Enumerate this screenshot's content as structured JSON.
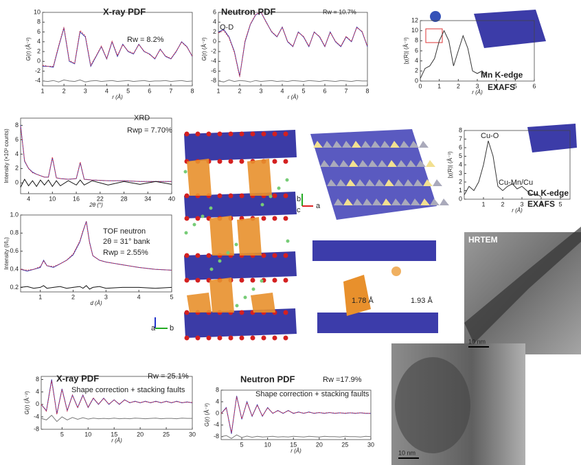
{
  "chart_data": [
    {
      "type": "line",
      "title": "X-ray PDF",
      "annotations": [
        "Rw = 8.2%"
      ],
      "xlabel": "r (Å)",
      "ylabel": "G(r) (Å⁻²)",
      "x": [
        1,
        1.25,
        1.5,
        1.75,
        2,
        2.25,
        2.5,
        2.75,
        3,
        3.25,
        3.5,
        3.75,
        4,
        4.25,
        4.5,
        4.75,
        5,
        5.25,
        5.5,
        5.75,
        6,
        6.25,
        6.5,
        6.75,
        7,
        7.25,
        7.5,
        7.75,
        8
      ],
      "series": [
        {
          "color": "#3a3aa8",
          "values": [
            -1,
            -1,
            -1.2,
            3,
            6.8,
            0,
            -0.5,
            6,
            5,
            -1,
            1,
            3,
            0.5,
            4,
            1,
            3.5,
            2,
            1.5,
            3.5,
            2,
            1.5,
            0.5,
            2.5,
            1,
            0.5,
            2,
            4,
            3,
            1
          ]
        },
        {
          "color": "#d0304a",
          "style": "dashed",
          "values": [
            -0.8,
            -1,
            -1,
            3.2,
            7,
            0.2,
            -0.4,
            6.3,
            5.2,
            -0.8,
            1.1,
            3.1,
            0.6,
            4.1,
            1.2,
            3.4,
            2.1,
            1.6,
            3.4,
            2.1,
            1.4,
            0.6,
            2.4,
            1.1,
            0.6,
            2.1,
            3.9,
            2.9,
            1.1
          ]
        },
        {
          "color": "#777777",
          "values": [
            -4,
            -4.1,
            -3.9,
            -4.2,
            -3.8,
            -4,
            -4.1,
            -3.8,
            -4.2,
            -4,
            -3.9,
            -4.1,
            -4,
            -3.9,
            -4.1,
            -4,
            -3.9,
            -4.1,
            -4,
            -3.9,
            -4.1,
            -4,
            -4,
            -3.9,
            -4.1,
            -4,
            -3.9,
            -4.1,
            -4
          ]
        }
      ],
      "xlim": [
        1,
        8
      ],
      "ylim": [
        -5,
        10
      ],
      "xticks": [
        1,
        2,
        3,
        4,
        5,
        6,
        7,
        8
      ],
      "yticks": [
        -4,
        -2,
        0,
        2,
        4,
        6,
        8,
        10
      ]
    },
    {
      "type": "line",
      "title": "Neutron PDF",
      "annotations": [
        "Rw = 10.7%",
        "O-D"
      ],
      "xlabel": "r (Å)",
      "ylabel": "G(r) (Å⁻²)",
      "x": [
        1,
        1.25,
        1.5,
        1.75,
        2,
        2.25,
        2.5,
        2.75,
        3,
        3.25,
        3.5,
        3.75,
        4,
        4.25,
        4.5,
        4.75,
        5,
        5.25,
        5.5,
        5.75,
        6,
        6.25,
        6.5,
        6.75,
        7,
        7.25,
        7.5,
        7.75,
        8
      ],
      "series": [
        {
          "color": "#3a3aa8",
          "values": [
            2,
            2.5,
            1,
            -2,
            -7,
            0,
            3.5,
            5.5,
            6,
            4,
            2,
            1,
            3,
            0,
            -1,
            2,
            1,
            -1,
            2,
            1,
            -1,
            2,
            0,
            -1,
            1,
            0,
            3,
            2,
            -1
          ]
        },
        {
          "color": "#d0304a",
          "style": "dashed",
          "values": [
            1.8,
            2.3,
            0.8,
            -2.2,
            -7.2,
            0.2,
            3.6,
            5.6,
            6.1,
            3.9,
            2.1,
            1.1,
            2.9,
            0.1,
            -0.9,
            1.9,
            1.1,
            -0.9,
            1.9,
            1.1,
            -0.9,
            1.9,
            0.1,
            -0.9,
            1.1,
            0.1,
            2.9,
            2.1,
            -0.9
          ]
        },
        {
          "color": "#777777",
          "values": [
            -8,
            -8.2,
            -7.8,
            -8.1,
            -7.9,
            -8,
            -8.2,
            -7.9,
            -8.1,
            -8,
            -7.9,
            -8.1,
            -8,
            -8.1,
            -7.9,
            -8,
            -8.1,
            -7.9,
            -8,
            -8.1,
            -7.9,
            -8,
            -8.1,
            -7.9,
            -8,
            -8.1,
            -7.9,
            -8,
            -8
          ]
        }
      ],
      "xlim": [
        1,
        8
      ],
      "ylim": [
        -9,
        6
      ],
      "xticks": [
        1,
        2,
        3,
        4,
        5,
        6,
        7,
        8
      ],
      "yticks": [
        -8,
        -6,
        -4,
        -2,
        0,
        2,
        4,
        6
      ]
    },
    {
      "type": "line",
      "annotations": [
        "Mn K-edge",
        "EXAFS"
      ],
      "xlabel": "r (Å)",
      "ylabel": "|χ(R)| (Å⁻³)",
      "x": [
        0,
        0.25,
        0.5,
        0.75,
        1,
        1.25,
        1.5,
        1.75,
        2,
        2.25,
        2.5,
        2.75,
        3,
        3.25,
        3.5
      ],
      "series": [
        {
          "color": "#333333",
          "values": [
            0.5,
            2.5,
            3,
            4.5,
            8,
            10,
            8,
            3,
            6,
            9,
            6.5,
            2,
            1.5,
            2,
            1
          ]
        }
      ],
      "xlim": [
        0,
        6
      ],
      "ylim": [
        0,
        12
      ],
      "xticks": [
        0,
        1,
        2,
        3,
        4,
        5,
        6
      ],
      "yticks": [
        0,
        2,
        4,
        6,
        8,
        10,
        12
      ]
    },
    {
      "type": "line",
      "annotations": [
        "XRD",
        "Rwp = 7.70%"
      ],
      "xlabel": "2θ (°)",
      "ylabel": "Intensity (×10³ counts)",
      "x": [
        2,
        3,
        4,
        5,
        6,
        7,
        8,
        9,
        10,
        11,
        12,
        14,
        16,
        17,
        18,
        20,
        24,
        28,
        32,
        36,
        40
      ],
      "series": [
        {
          "color": "#3a3aa8",
          "values": [
            8,
            3,
            2,
            1.5,
            1.2,
            1,
            0.8,
            0.8,
            3.5,
            0.7,
            0.6,
            0.5,
            0.6,
            2.8,
            0.5,
            0.4,
            0.3,
            0.3,
            0.2,
            0.2,
            0.2
          ]
        },
        {
          "color": "#d0304a",
          "style": "dashed",
          "values": [
            7.8,
            3.1,
            2,
            1.4,
            1.2,
            1,
            0.8,
            0.8,
            3.6,
            0.7,
            0.6,
            0.5,
            0.6,
            2.9,
            0.5,
            0.4,
            0.3,
            0.3,
            0.2,
            0.2,
            0.2
          ]
        },
        {
          "color": "#111111",
          "values": [
            -0.6,
            0.5,
            -0.4,
            0.3,
            -0.5,
            0.4,
            -0.3,
            0.4,
            -0.5,
            0.3,
            -0.4,
            0.3,
            -0.3,
            0.4,
            -0.3,
            0.3,
            -0.3,
            0.2,
            -0.2,
            0.2,
            -0.2
          ]
        }
      ],
      "xlim": [
        2,
        40
      ],
      "ylim": [
        -1.5,
        9
      ],
      "xticks": [
        4,
        10,
        16,
        22,
        28,
        34,
        40
      ],
      "yticks": [
        0,
        2,
        4,
        6,
        8
      ]
    },
    {
      "type": "line",
      "annotations": [
        "TOF neutron",
        "2θ = 31° bank",
        "Rwp = 2.55%"
      ],
      "xlabel": "d (Å)",
      "ylabel": "Intensity (I/I₀)",
      "x": [
        0.4,
        0.6,
        0.8,
        1,
        1.1,
        1.2,
        1.4,
        1.6,
        1.8,
        2,
        2.2,
        2.3,
        2.4,
        2.5,
        2.6,
        2.8,
        3,
        3.5,
        4,
        4.5,
        5
      ],
      "series": [
        {
          "color": "#3a3aa8",
          "values": [
            0.4,
            0.38,
            0.4,
            0.42,
            0.5,
            0.44,
            0.42,
            0.46,
            0.5,
            0.56,
            0.7,
            0.82,
            0.93,
            0.7,
            0.55,
            0.5,
            0.48,
            0.45,
            0.42,
            0.4,
            0.39
          ]
        },
        {
          "color": "#d0304a",
          "style": "dashed",
          "values": [
            0.4,
            0.39,
            0.4,
            0.43,
            0.49,
            0.44,
            0.43,
            0.46,
            0.5,
            0.57,
            0.71,
            0.83,
            0.92,
            0.69,
            0.55,
            0.5,
            0.48,
            0.45,
            0.42,
            0.4,
            0.39
          ]
        },
        {
          "color": "#111111",
          "values": [
            0.2,
            0.21,
            0.19,
            0.2,
            0.22,
            0.19,
            0.2,
            0.21,
            0.19,
            0.2,
            0.21,
            0.19,
            0.22,
            0.18,
            0.2,
            0.21,
            0.19,
            0.2,
            0.2,
            0.19,
            0.2
          ]
        }
      ],
      "xlim": [
        0.4,
        5
      ],
      "ylim": [
        0.15,
        1.0
      ],
      "xticks": [
        1,
        2,
        3,
        4,
        5
      ],
      "yticks": [
        0.2,
        0.4,
        0.6,
        0.8,
        {
          "value": 1,
          "label": "1.0"
        }
      ]
    },
    {
      "type": "line",
      "annotations": [
        "Cu-O",
        "Cu-Mn/Cu",
        "Cu K-edge",
        "EXAFS"
      ],
      "xlabel": "r (Å)",
      "ylabel": "|χ(R)| (Å⁻³)",
      "x": [
        0,
        0.25,
        0.5,
        0.75,
        1,
        1.25,
        1.5,
        1.75,
        2,
        2.25,
        2.5,
        2.75,
        3,
        3.25,
        3.5,
        3.75,
        4
      ],
      "series": [
        {
          "color": "#333333",
          "values": [
            0.5,
            1.5,
            1,
            2,
            4,
            6.8,
            5,
            1.5,
            1,
            1.5,
            1.8,
            1.2,
            1.5,
            1,
            0.5,
            0.6,
            0.3
          ]
        }
      ],
      "xlim": [
        0,
        5.5
      ],
      "ylim": [
        0,
        8
      ],
      "xticks": [
        1,
        2,
        3,
        4,
        5
      ],
      "yticks": [
        0,
        1,
        2,
        3,
        4,
        5,
        6,
        7,
        8
      ]
    },
    {
      "type": "line",
      "title": "X-ray PDF",
      "annotations": [
        "Rw = 25.1%",
        "Shape correction + stacking faults"
      ],
      "xlabel": "r (Å)",
      "ylabel": "G(r) (Å⁻²)",
      "x": [
        1,
        2,
        3,
        4,
        5,
        6,
        7,
        8,
        9,
        10,
        11,
        12,
        13,
        14,
        15,
        16,
        17,
        18,
        19,
        20,
        21,
        22,
        23,
        24,
        25,
        26,
        27,
        28,
        29,
        30
      ],
      "series": [
        {
          "color": "#3a3aa8",
          "values": [
            0,
            -2,
            8,
            -3,
            5,
            -2,
            3,
            -1,
            3,
            -1,
            2,
            0,
            2,
            0,
            1.5,
            0,
            1.5,
            0.5,
            1,
            0.5,
            1,
            0.5,
            1,
            0.5,
            1,
            0.5,
            1,
            0.5,
            0.8,
            0.5
          ]
        },
        {
          "color": "#d0304a",
          "style": "dashed",
          "values": [
            0,
            -2.2,
            7.6,
            -3.2,
            4.8,
            -2.1,
            2.9,
            -1.1,
            2.8,
            -0.9,
            2.1,
            0.1,
            1.9,
            0.1,
            1.4,
            0.1,
            1.4,
            0.6,
            0.9,
            0.6,
            0.9,
            0.6,
            0.9,
            0.6,
            0.9,
            0.6,
            0.9,
            0.6,
            0.7,
            0.6
          ]
        },
        {
          "color": "#777777",
          "values": [
            -4.5,
            -5,
            -3.5,
            -5.5,
            -4,
            -5,
            -4.2,
            -4.8,
            -4.3,
            -4.7,
            -4.4,
            -4.6,
            -4.5,
            -4.6,
            -4.4,
            -4.6,
            -4.5,
            -4.6,
            -4.4,
            -4.5,
            -4.6,
            -4.5,
            -4.4,
            -4.6,
            -4.5,
            -4.5,
            -4.6,
            -4.4,
            -4.5,
            -4.5
          ]
        }
      ],
      "xlim": [
        1,
        30
      ],
      "ylim": [
        -8,
        9
      ],
      "xticks": [
        5,
        10,
        15,
        20,
        25,
        30
      ],
      "yticks": [
        -8,
        -4,
        0,
        4,
        8
      ]
    },
    {
      "type": "line",
      "title": "Neutron PDF",
      "annotations": [
        "Rw =17.9%",
        "Shape correction + stacking faults"
      ],
      "xlabel": "r (Å)",
      "ylabel": "G(r) (Å⁻²)",
      "x": [
        1,
        2,
        3,
        4,
        5,
        6,
        7,
        8,
        9,
        10,
        11,
        12,
        13,
        14,
        15,
        16,
        17,
        18,
        19,
        20,
        21,
        22,
        23,
        24,
        25,
        26,
        27,
        28,
        29,
        30
      ],
      "series": [
        {
          "color": "#3a3aa8",
          "values": [
            0,
            2,
            -7,
            6,
            -2,
            4,
            -1,
            3,
            -1,
            2,
            0,
            1,
            0,
            1,
            0,
            0.5,
            0,
            0.5,
            0,
            0.3,
            0,
            0.3,
            0,
            0.2,
            0,
            0.2,
            0,
            0.2,
            0,
            0
          ]
        },
        {
          "color": "#d0304a",
          "style": "dashed",
          "values": [
            0,
            1.8,
            -6.6,
            5.7,
            -1.8,
            3.8,
            -0.9,
            2.8,
            -0.9,
            1.9,
            0.1,
            0.9,
            0.1,
            0.9,
            0.1,
            0.4,
            0.1,
            0.4,
            0.1,
            0.3,
            0.1,
            0.3,
            0.1,
            0.2,
            0.1,
            0.2,
            0.1,
            0.2,
            0.1,
            0
          ]
        },
        {
          "color": "#777777",
          "values": [
            -8,
            -7.6,
            -8.6,
            -7.4,
            -8.3,
            -7.8,
            -8.2,
            -7.9,
            -8.1,
            -8,
            -7.9,
            -8.1,
            -8,
            -8.1,
            -7.9,
            -8,
            -8.1,
            -7.9,
            -8,
            -8.1,
            -7.9,
            -8,
            -8,
            -8.1,
            -7.9,
            -8,
            -8,
            -8.1,
            -7.9,
            -8
          ]
        }
      ],
      "xlim": [
        1,
        30
      ],
      "ylim": [
        -9,
        8
      ],
      "xticks": [
        5,
        10,
        15,
        20,
        25,
        30
      ],
      "yticks": [
        -8,
        -4,
        0,
        4,
        8
      ]
    }
  ],
  "structures": {
    "axes_top": [
      "b",
      "c",
      "a"
    ],
    "axes_bottom": [
      "b",
      "a"
    ],
    "bond_lengths": [
      "1.78 Å",
      "1.93 Å"
    ]
  },
  "micrographs": {
    "label": "HRTEM",
    "scale_bars": [
      "10 nm",
      "10 nm"
    ]
  }
}
